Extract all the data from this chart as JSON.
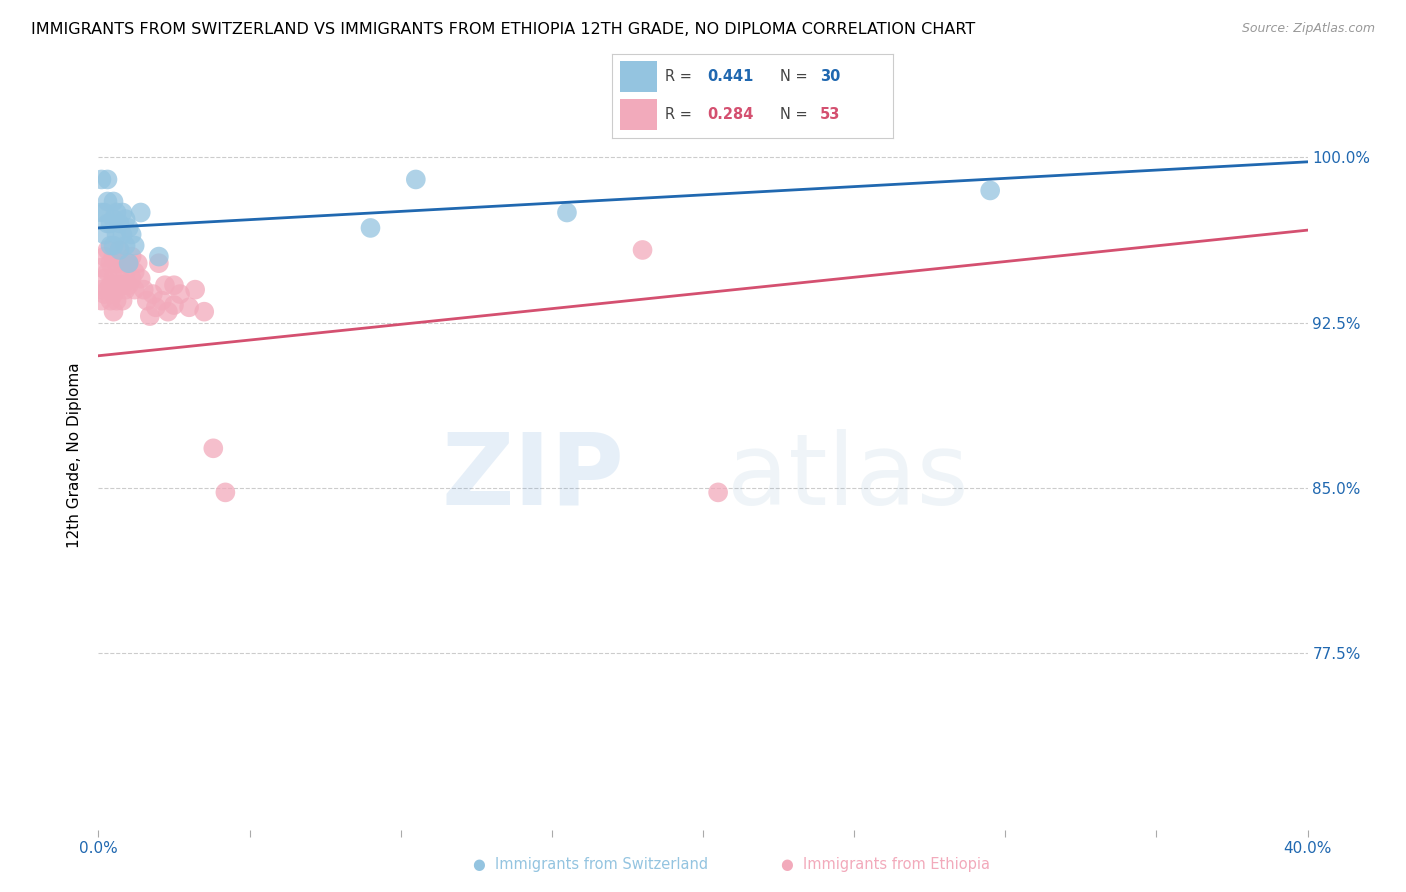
{
  "title": "IMMIGRANTS FROM SWITZERLAND VS IMMIGRANTS FROM ETHIOPIA 12TH GRADE, NO DIPLOMA CORRELATION CHART",
  "source": "Source: ZipAtlas.com",
  "ylabel": "12th Grade, No Diploma",
  "y_ticks": [
    0.775,
    0.85,
    0.925,
    1.0
  ],
  "y_ticklabels": [
    "77.5%",
    "85.0%",
    "92.5%",
    "100.0%"
  ],
  "xlim": [
    0.0,
    0.4
  ],
  "ylim": [
    0.695,
    1.035
  ],
  "legend_r_blue": "0.441",
  "legend_n_blue": "30",
  "legend_r_pink": "0.284",
  "legend_n_pink": "53",
  "blue_scatter_color": "#94c4e0",
  "pink_scatter_color": "#f2aabb",
  "blue_line_color": "#2068b0",
  "pink_line_color": "#d45070",
  "accent_color": "#2068b0",
  "watermark_zip_color": "#c8d8ec",
  "watermark_atlas_color": "#b8cce0",
  "swiss_x": [
    0.001,
    0.001,
    0.002,
    0.002,
    0.003,
    0.003,
    0.003,
    0.004,
    0.004,
    0.005,
    0.005,
    0.005,
    0.006,
    0.006,
    0.007,
    0.007,
    0.008,
    0.008,
    0.009,
    0.009,
    0.01,
    0.01,
    0.011,
    0.012,
    0.014,
    0.02,
    0.09,
    0.105,
    0.155,
    0.295
  ],
  "swiss_y": [
    0.99,
    0.975,
    0.975,
    0.965,
    0.99,
    0.98,
    0.97,
    0.97,
    0.96,
    0.98,
    0.972,
    0.96,
    0.975,
    0.965,
    0.97,
    0.958,
    0.975,
    0.965,
    0.972,
    0.96,
    0.968,
    0.952,
    0.965,
    0.96,
    0.975,
    0.955,
    0.968,
    0.99,
    0.975,
    0.985
  ],
  "ethiopia_x": [
    0.001,
    0.001,
    0.001,
    0.002,
    0.002,
    0.002,
    0.003,
    0.003,
    0.003,
    0.004,
    0.004,
    0.004,
    0.005,
    0.005,
    0.005,
    0.005,
    0.006,
    0.006,
    0.006,
    0.007,
    0.007,
    0.008,
    0.008,
    0.008,
    0.009,
    0.009,
    0.01,
    0.01,
    0.011,
    0.011,
    0.012,
    0.012,
    0.013,
    0.014,
    0.015,
    0.016,
    0.017,
    0.018,
    0.019,
    0.02,
    0.021,
    0.022,
    0.023,
    0.025,
    0.025,
    0.027,
    0.03,
    0.032,
    0.035,
    0.038,
    0.042,
    0.18,
    0.205
  ],
  "ethiopia_y": [
    0.95,
    0.94,
    0.935,
    0.955,
    0.945,
    0.938,
    0.958,
    0.948,
    0.94,
    0.952,
    0.942,
    0.935,
    0.955,
    0.945,
    0.938,
    0.93,
    0.952,
    0.942,
    0.935,
    0.958,
    0.945,
    0.952,
    0.942,
    0.935,
    0.948,
    0.94,
    0.952,
    0.942,
    0.955,
    0.945,
    0.948,
    0.94,
    0.952,
    0.945,
    0.94,
    0.935,
    0.928,
    0.938,
    0.932,
    0.952,
    0.935,
    0.942,
    0.93,
    0.942,
    0.933,
    0.938,
    0.932,
    0.94,
    0.93,
    0.868,
    0.848,
    0.958,
    0.848
  ],
  "blue_line_x0": 0.0,
  "blue_line_y0": 0.968,
  "blue_line_x1": 0.4,
  "blue_line_y1": 0.998,
  "pink_line_x0": 0.0,
  "pink_line_y0": 0.91,
  "pink_line_x1": 0.4,
  "pink_line_y1": 0.967
}
